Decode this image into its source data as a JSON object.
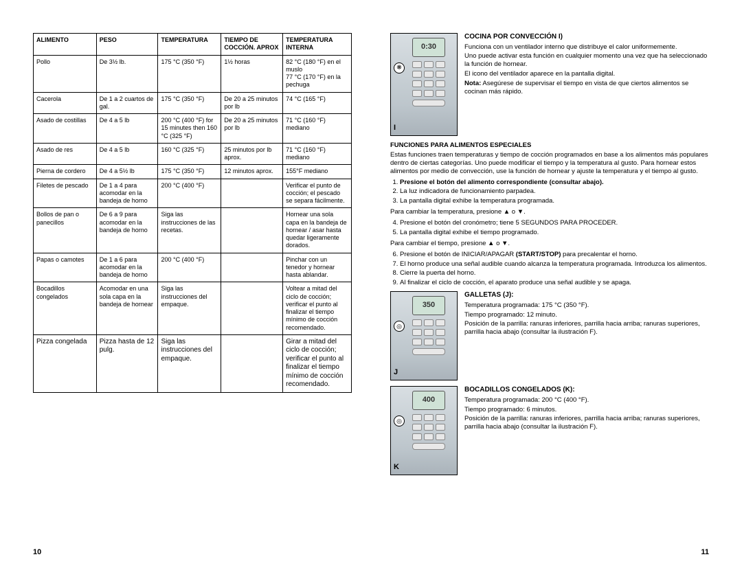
{
  "table": {
    "headers": [
      "Alimento",
      "Peso",
      "Temperatura",
      "Tiempo de cocción. Aprox",
      "Temperatura interna"
    ],
    "rows": [
      [
        "Pollo",
        "De 3½ lb.",
        "175 °C (350 °F)",
        "1½ horas",
        "82 °C (180 °F) en el muslo\n77 °C (170 °F) en la pechuga"
      ],
      [
        "Cacerola",
        "De 1 a 2 cuartos de gal.",
        "175 °C (350 °F)",
        "De 20 a 25 minutos por lb",
        "74 °C (165 °F)"
      ],
      [
        "Asado de costillas",
        "De 4 a 5 lb",
        "200 °C (400 °F) for 15 minutes then 160 °C (325 °F)",
        "De 20 a 25 minutos por lb",
        "71 °C (160 °F) mediano"
      ],
      [
        "Asado de res",
        "De 4 a 5 lb",
        "160 °C (325 °F)",
        "25 minutos por lb aprox.",
        "71 °C (160 °F) mediano"
      ],
      [
        "Pierna de cordero",
        "De 4 a 5½ lb",
        "175 °C (350 °F)",
        "12 minutos aprox.",
        "155°F mediano"
      ],
      [
        "Filetes de pescado",
        "De 1 a 4 para acomodar en la bandeja de horno",
        "200 °C (400 °F)",
        "",
        "Verificar el punto de cocción; el pescado se separa fácilmente."
      ],
      [
        "Bollos de pan o panecillos",
        "De 6 a 9 para acomodar en la bandeja de horno",
        "Siga las instrucciones de las recetas.",
        "",
        "Hornear una sola capa en la bandeja de hornear / asar hasta quedar ligeramente dorados."
      ],
      [
        "Papas o camotes",
        "De 1 a 6 para acomodar en la bandeja de horno",
        "200 °C (400 °F)",
        "",
        "Pinchar con un tenedor y hornear hasta ablandar."
      ],
      [
        "Bocadillos congelados",
        "Acomodar en una sola capa en la bandeja de hornear",
        "Siga las instrucciones del empaque.",
        "",
        "Voltear a mitad del ciclo de cocción; verificar el punto al finalizar el tiempo mínimo de cocción recomendado."
      ],
      [
        "Pizza congelada",
        "Pizza hasta de 12 pulg.",
        "Siga las instrucciones del empaque.",
        "",
        "Girar a mitad del ciclo de cocción; verificar el punto al finalizar el tiempo mínimo de cocción recomendado."
      ]
    ]
  },
  "page_left_num": "10",
  "page_right_num": "11",
  "section_i": {
    "title": "COCINA POR CONVECCIÓN I)",
    "p1": "Funciona con un ventilador interno que distribuye el calor uniformemente.",
    "p2": "Uno puede activar esta función en cualquier momento una vez que ha seleccionado la función de hornear.",
    "p3": "El icono del ventilador aparece en la pantalla digital.",
    "note_label": "Nota:",
    "note": "Asegúrese de supervisar el tiempo en vista de que ciertos alimentos se cocinan más rápido.",
    "panel_display": "0:30",
    "panel_letter": "I",
    "panel_icon": "❋"
  },
  "funciones": {
    "title": "FUNCIONES PARA ALIMENTOS ESPECIALES",
    "intro": "Estas funciones traen temperaturas y tiempo de cocción programados en base a los alimentos más populares dentro de ciertas categorías.  Uno puede modificar el tiempo y la temperatura al gusto.  Para hornear estos alimentos por medio de convección, use la función de hornear y ajuste la temperatura y el tiempo al gusto.",
    "step1": "Presione el botón del alimento correspondiente (consultar abajo).",
    "step2": "La luz indicadora de funcionamiento parpadea.",
    "step3": "La pantalla digital exhibe la temperatura programada.",
    "mid1": "Para cambiar la temperatura, presione ▲ o ▼.",
    "step4": "Presione el botón del cronómetro; tiene 5 SEGUNDOS PARA PROCEDER.",
    "step5": "La pantalla digital exhibe el tiempo programado.",
    "mid2": "Para cambiar el tiempo, presione ▲ o ▼.",
    "step6_a": "Presione el botón de INICIAR/APAGAR ",
    "step6_b": "(START/STOP)",
    "step6_c": " para precalentar el horno.",
    "step7": "El horno produce una señal audible cuando alcanza la temperatura programada.  Introduzca los alimentos.",
    "step8": "Cierre la puerta del horno.",
    "step9": "Al finalizar el ciclo de cocción, el aparato produce una señal audible y se apaga."
  },
  "section_j": {
    "title": "GALLETAS (J):",
    "l1": "Temperatura programada: 175 °C (350 °F).",
    "l2": "Tiempo programado: 12 minuto.",
    "l3": "Posición de la parrilla: ranuras inferiores, parrilla hacia arriba; ranuras superiores, parrilla hacia abajo (consultar la ilustración F).",
    "panel_display": "350",
    "panel_letter": "J",
    "panel_icon": "◎"
  },
  "section_k": {
    "title": "BOCADILLOS CONGELADOS (K):",
    "l1": "Temperatura programada: 200 °C (400 °F).",
    "l2": "Tiempo programado: 6 minutos.",
    "l3": "Posición de la parrilla: ranuras inferiores, parrilla hacia arriba; ranuras superiores, parrilla hacia abajo (consultar la ilustración F).",
    "panel_display": "400",
    "panel_letter": "K",
    "panel_icon": "◎"
  }
}
